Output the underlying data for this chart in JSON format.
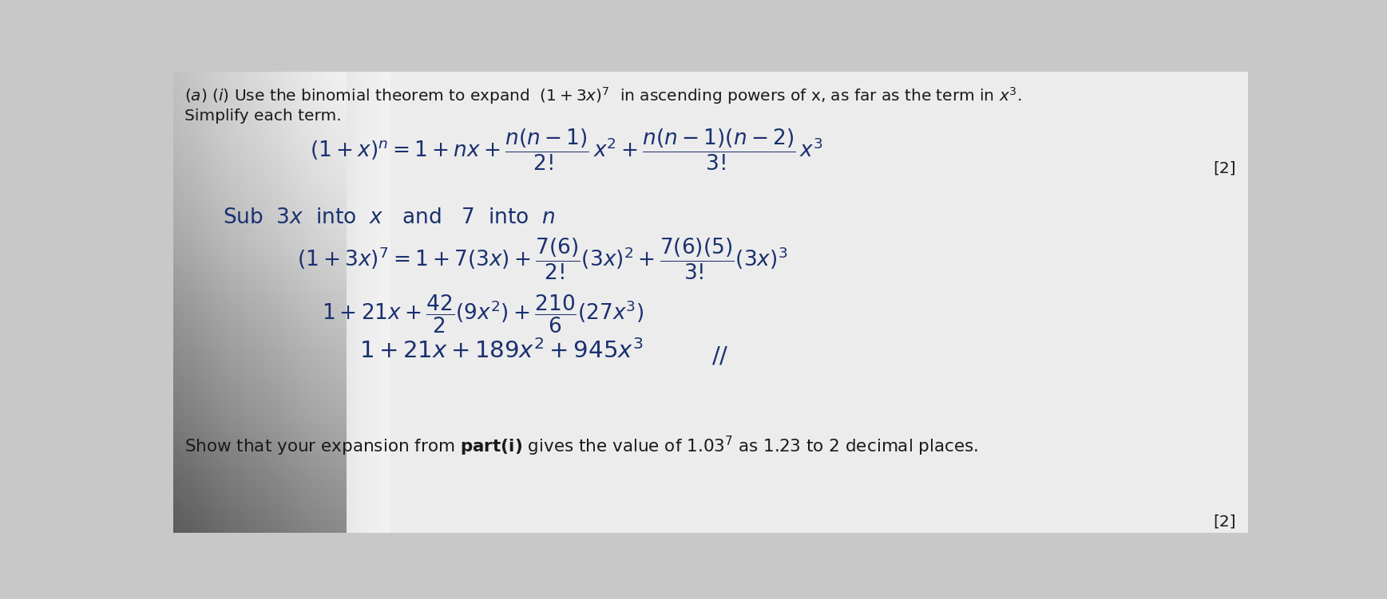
{
  "bg_color": "#c8c8c8",
  "paper_color": "#e8e8e8",
  "blue": "#1a3070",
  "black": "#1a1a1a",
  "figsize": [
    17.37,
    7.51
  ],
  "dpi": 100,
  "fs_print": 14.5,
  "fs_hand": 19,
  "fs_hand_lg": 21,
  "gradient_left": "#aaaaaa",
  "gradient_right": "#e0e0e0"
}
